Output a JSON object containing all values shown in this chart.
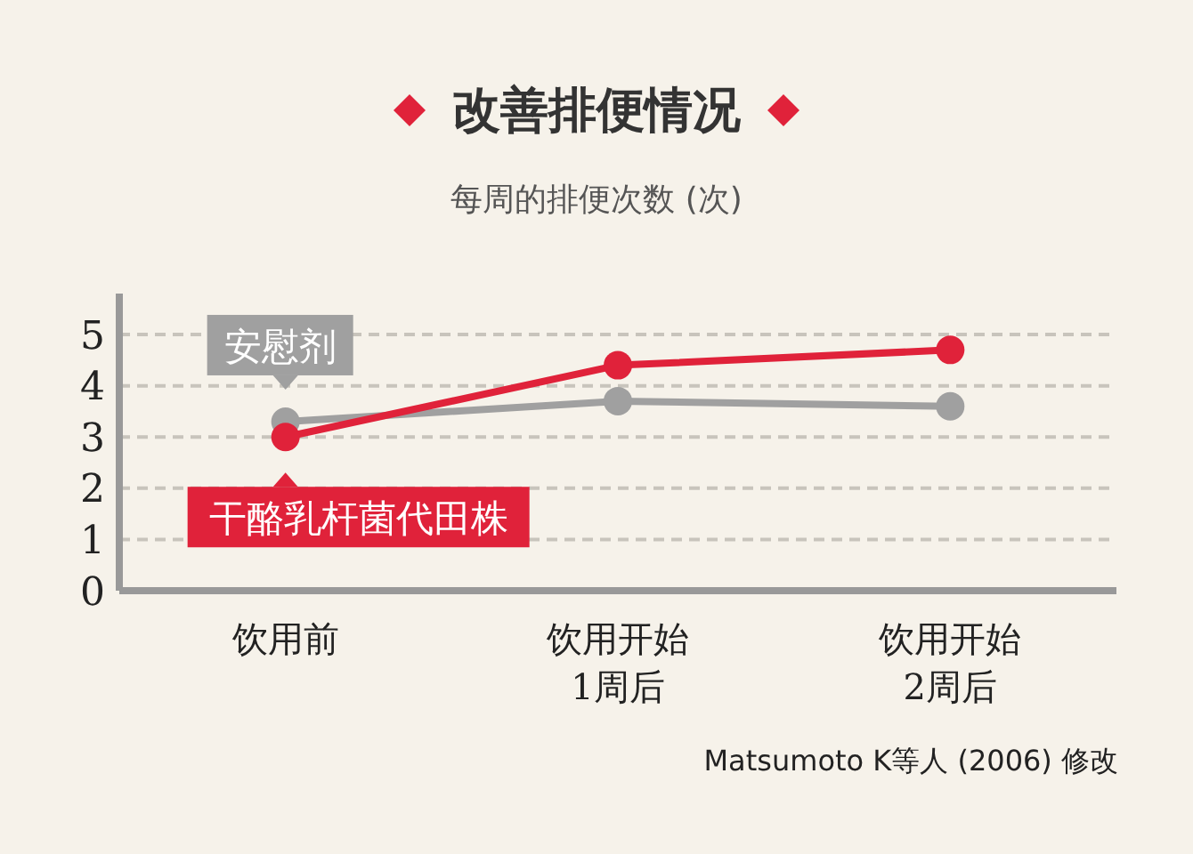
{
  "chart_data": {
    "type": "line",
    "title": "改善排便情况",
    "subtitle": "每周的排便次数 (次)",
    "categories": [
      "饮用前",
      "饮用开始\n1周后",
      "饮用开始\n2周后"
    ],
    "series": [
      {
        "name": "安慰剂",
        "color": "#a0a0a0",
        "values": [
          3.3,
          3.7,
          3.6
        ]
      },
      {
        "name": "干酪乳杆菌代田株",
        "color": "#e0223a",
        "values": [
          3.0,
          4.4,
          4.7
        ]
      }
    ],
    "ylim": [
      0,
      5.8
    ],
    "yticks": [
      0,
      1,
      2,
      3,
      4,
      5
    ],
    "grid": "y",
    "legend": "left",
    "marker": "circle",
    "line_style": "solid",
    "annotations": [
      "Matsumoto K等人 (2006) 修改"
    ]
  }
}
